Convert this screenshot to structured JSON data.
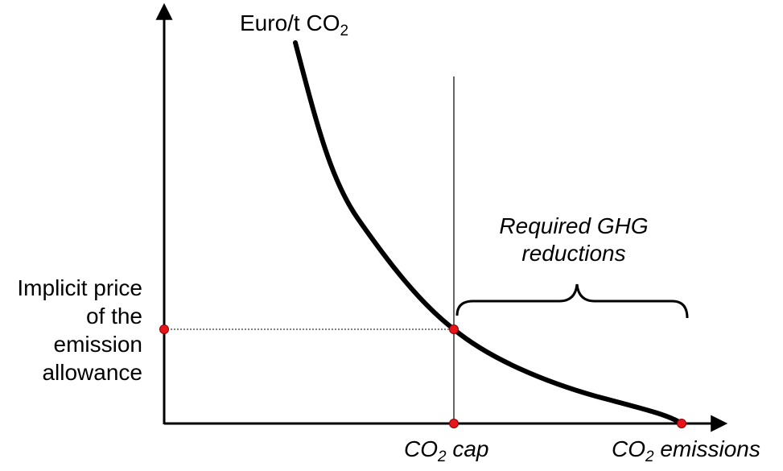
{
  "diagram": {
    "y_axis": {
      "text": "Euro/t CO",
      "sub": "2"
    },
    "price_label": [
      "Implicit price",
      "of the",
      "emission",
      "allowance"
    ],
    "reductions_label": [
      "Required GHG",
      "reductions"
    ],
    "cap_label": {
      "prefix": "CO",
      "sub": "2",
      "suffix": " cap"
    },
    "emissions_label": {
      "prefix": "CO",
      "sub": "2",
      "suffix": " emissions"
    },
    "colors": {
      "curve": "#000000",
      "points": "#e8141c",
      "axes": "#000000"
    }
  }
}
